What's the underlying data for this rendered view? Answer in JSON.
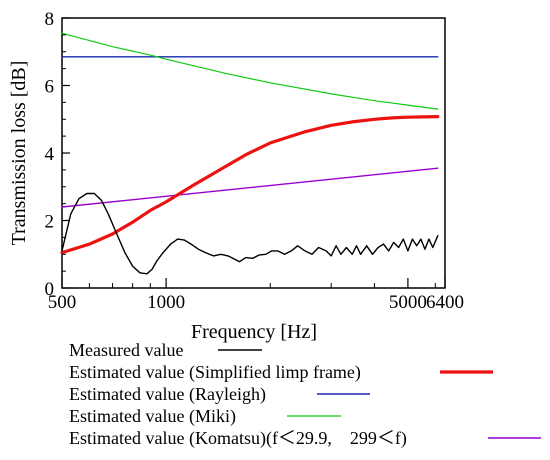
{
  "chart_data": {
    "type": "line",
    "xlabel": "Frequency [Hz]",
    "ylabel": "Transmission loss [dB]",
    "xscale": "log",
    "xlim": [
      500,
      6400
    ],
    "ylim": [
      0,
      8
    ],
    "x_ticks": [
      {
        "value": 500,
        "label": "500"
      },
      {
        "value": 1000,
        "label": "1000"
      },
      {
        "value": 5000,
        "label": "5000"
      },
      {
        "value": 6400,
        "label": "6400"
      }
    ],
    "y_ticks": [
      {
        "value": 0,
        "label": "0"
      },
      {
        "value": 2,
        "label": "2"
      },
      {
        "value": 4,
        "label": "4"
      },
      {
        "value": 6,
        "label": "6"
      },
      {
        "value": 8,
        "label": "8"
      }
    ],
    "grid": false,
    "legend_position": "bottom",
    "series": [
      {
        "name": "Measured value",
        "color": "#000000",
        "x": [
          500,
          530,
          560,
          590,
          620,
          650,
          680,
          720,
          760,
          800,
          840,
          880,
          910,
          940,
          980,
          1030,
          1080,
          1130,
          1180,
          1240,
          1300,
          1370,
          1440,
          1510,
          1580,
          1630,
          1700,
          1780,
          1860,
          1940,
          2020,
          2100,
          2200,
          2300,
          2400,
          2520,
          2640,
          2760,
          2900,
          3000,
          3100,
          3200,
          3320,
          3450,
          3550,
          3650,
          3800,
          3950,
          4100,
          4250,
          4400,
          4550,
          4700,
          4850,
          5000,
          5150,
          5300,
          5450,
          5600,
          5750,
          5900,
          6100
        ],
        "y": [
          1.1,
          2.2,
          2.65,
          2.8,
          2.8,
          2.6,
          2.2,
          1.6,
          1.05,
          0.65,
          0.45,
          0.42,
          0.55,
          0.8,
          1.05,
          1.3,
          1.45,
          1.42,
          1.3,
          1.15,
          1.05,
          0.95,
          1.0,
          0.95,
          0.85,
          0.78,
          0.9,
          0.88,
          0.98,
          1.0,
          1.1,
          1.1,
          1.0,
          1.1,
          1.25,
          1.1,
          1.0,
          1.2,
          1.1,
          0.95,
          1.25,
          1.0,
          1.2,
          1.0,
          1.25,
          1.0,
          1.25,
          1.0,
          1.2,
          1.3,
          1.1,
          1.35,
          1.2,
          1.45,
          1.1,
          1.45,
          1.25,
          1.45,
          1.15,
          1.45,
          1.2,
          1.55
        ]
      },
      {
        "name": "Estimated value (Simplified limp frame)",
        "color": "#ee1111",
        "x": [
          500,
          600,
          700,
          800,
          900,
          1000,
          1200,
          1400,
          1700,
          2000,
          2500,
          3000,
          3500,
          4000,
          4500,
          5000,
          5500,
          6100
        ],
        "y": [
          1.05,
          1.3,
          1.6,
          1.95,
          2.3,
          2.55,
          3.05,
          3.45,
          3.95,
          4.3,
          4.62,
          4.82,
          4.93,
          5.0,
          5.04,
          5.06,
          5.07,
          5.08
        ]
      },
      {
        "name": "Estimated value (Rayleigh)",
        "color": "#1a2ab0",
        "x": [
          500,
          6100
        ],
        "y": [
          6.85,
          6.85
        ]
      },
      {
        "name": "Estimated value (Miki)",
        "color": "#11cc11",
        "x": [
          500,
          700,
          900,
          1000,
          1500,
          2000,
          3000,
          4000,
          5000,
          6100
        ],
        "y": [
          7.55,
          7.15,
          6.9,
          6.78,
          6.35,
          6.08,
          5.75,
          5.55,
          5.42,
          5.3
        ]
      },
      {
        "name": "Estimated value (Komatsu)(f＜29.9,　299＜f)",
        "color": "#9900cc",
        "x": [
          500,
          6100
        ],
        "y": [
          2.4,
          3.55
        ]
      }
    ]
  }
}
